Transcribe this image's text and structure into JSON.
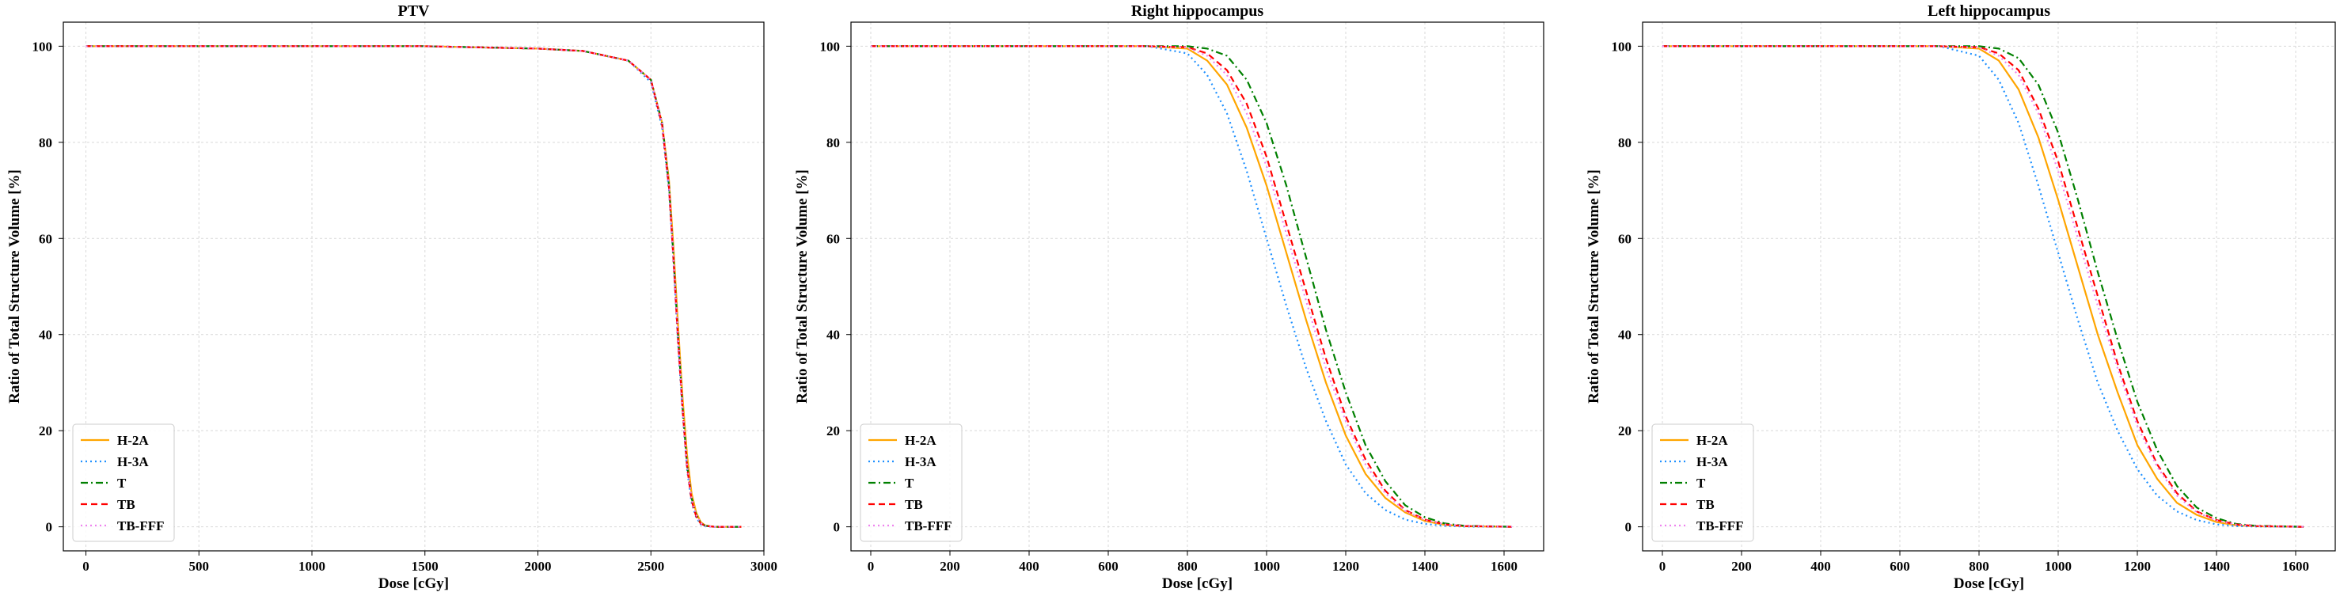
{
  "colors": {
    "H-2A": "#ffa500",
    "H-3A": "#1e90ff",
    "T": "#008000",
    "TB": "#ff0000",
    "TB-FFF": "#ee82ee"
  },
  "line_styles": {
    "H-2A": "solid",
    "H-3A": "dotted",
    "T": "dash-dot",
    "TB": "dashed",
    "TB-FFF": "dotted"
  },
  "chart_data": [
    {
      "type": "line",
      "title": "PTV",
      "xlabel": "Dose [cGy]",
      "ylabel": "Ratio of Total Structure Volume [%]",
      "xlim": [
        -100,
        3000
      ],
      "ylim": [
        -5,
        105
      ],
      "xticks": [
        0,
        500,
        1000,
        1500,
        2000,
        2500,
        3000
      ],
      "yticks": [
        0,
        20,
        40,
        60,
        80,
        100
      ],
      "grid": true,
      "legend": "lower-left",
      "series": [
        {
          "name": "H-2A",
          "x": [
            0,
            1000,
            1500,
            2000,
            2200,
            2400,
            2500,
            2550,
            2580,
            2600,
            2620,
            2640,
            2660,
            2680,
            2700,
            2720,
            2740,
            2780,
            2900
          ],
          "y": [
            100,
            100,
            100,
            99.5,
            99,
            97,
            93,
            84,
            72,
            58,
            42,
            27,
            15,
            7,
            3,
            1,
            0.3,
            0,
            0
          ]
        },
        {
          "name": "H-3A",
          "x": [
            0,
            1000,
            1500,
            2000,
            2200,
            2400,
            2500,
            2550,
            2580,
            2600,
            2620,
            2640,
            2660,
            2680,
            2700,
            2720,
            2740,
            2780,
            2900
          ],
          "y": [
            100,
            100,
            100,
            99.5,
            99,
            97,
            92.5,
            83,
            70,
            55,
            38,
            24,
            12,
            5,
            2,
            0.5,
            0.1,
            0,
            0
          ]
        },
        {
          "name": "T",
          "x": [
            0,
            1000,
            1500,
            2000,
            2200,
            2400,
            2500,
            2550,
            2580,
            2600,
            2620,
            2640,
            2660,
            2680,
            2700,
            2720,
            2740,
            2780,
            2900
          ],
          "y": [
            100,
            100,
            100,
            99.5,
            99,
            97,
            93,
            84,
            71,
            56,
            40,
            25,
            13,
            6,
            2.5,
            0.8,
            0.2,
            0,
            0
          ]
        },
        {
          "name": "TB",
          "x": [
            0,
            1000,
            1500,
            2000,
            2200,
            2400,
            2500,
            2550,
            2580,
            2600,
            2620,
            2640,
            2660,
            2680,
            2700,
            2720,
            2740,
            2780,
            2900
          ],
          "y": [
            100,
            100,
            100,
            99.5,
            99,
            97,
            93,
            83.5,
            70.5,
            55.5,
            39,
            24.5,
            12.5,
            5.5,
            2.2,
            0.7,
            0.2,
            0,
            0
          ]
        },
        {
          "name": "TB-FFF",
          "x": [
            0,
            1000,
            1500,
            2000,
            2200,
            2400,
            2500,
            2550,
            2580,
            2600,
            2620,
            2640,
            2660,
            2680,
            2700,
            2720,
            2740,
            2780,
            2900
          ],
          "y": [
            100,
            100,
            100,
            99.5,
            99,
            97,
            93,
            84,
            71,
            56,
            40,
            25,
            13,
            6,
            2.5,
            0.8,
            0.2,
            0,
            0
          ]
        }
      ]
    },
    {
      "type": "line",
      "title": "Right hippocampus",
      "xlabel": "Dose [cGy]",
      "ylabel": "Ratio of Total Structure Volume [%]",
      "xlim": [
        -50,
        1700
      ],
      "ylim": [
        -5,
        105
      ],
      "xticks": [
        0,
        200,
        400,
        600,
        800,
        1000,
        1200,
        1400,
        1600
      ],
      "yticks": [
        0,
        20,
        40,
        60,
        80,
        100
      ],
      "grid": true,
      "legend": "lower-left",
      "series": [
        {
          "name": "H-2A",
          "x": [
            0,
            700,
            800,
            850,
            900,
            950,
            1000,
            1050,
            1100,
            1150,
            1200,
            1250,
            1300,
            1350,
            1400,
            1450,
            1500,
            1620
          ],
          "y": [
            100,
            100,
            99.5,
            97,
            92,
            83,
            71,
            57,
            43,
            30,
            19,
            11,
            6,
            3,
            1.2,
            0.4,
            0.1,
            0
          ]
        },
        {
          "name": "H-3A",
          "x": [
            0,
            700,
            800,
            850,
            900,
            950,
            1000,
            1050,
            1100,
            1150,
            1200,
            1250,
            1300,
            1350,
            1400,
            1450,
            1500,
            1620
          ],
          "y": [
            100,
            100,
            98.5,
            94,
            86,
            74,
            60,
            46,
            33,
            22,
            13,
            7,
            3.5,
            1.5,
            0.6,
            0.2,
            0.05,
            0
          ]
        },
        {
          "name": "T",
          "x": [
            0,
            700,
            800,
            850,
            900,
            950,
            1000,
            1050,
            1100,
            1150,
            1200,
            1250,
            1300,
            1350,
            1400,
            1450,
            1500,
            1620
          ],
          "y": [
            100,
            100,
            100,
            99.5,
            98,
            93,
            84,
            71,
            56,
            41,
            28,
            17,
            9.5,
            4.5,
            2,
            0.7,
            0.2,
            0
          ]
        },
        {
          "name": "TB",
          "x": [
            0,
            700,
            800,
            850,
            900,
            950,
            1000,
            1050,
            1100,
            1150,
            1200,
            1250,
            1300,
            1350,
            1400,
            1450,
            1500,
            1620
          ],
          "y": [
            100,
            100,
            99.8,
            98.5,
            95,
            88,
            77,
            63,
            49,
            35,
            23,
            14,
            7.5,
            3.5,
            1.5,
            0.5,
            0.15,
            0
          ]
        },
        {
          "name": "TB-FFF",
          "x": [
            0,
            700,
            800,
            850,
            900,
            950,
            1000,
            1050,
            1100,
            1150,
            1200,
            1250,
            1300,
            1350,
            1400,
            1450,
            1500,
            1620
          ],
          "y": [
            100,
            100,
            99.7,
            98,
            94,
            86,
            75,
            61,
            47,
            33,
            22,
            13,
            7,
            3.3,
            1.4,
            0.5,
            0.15,
            0
          ]
        }
      ]
    },
    {
      "type": "line",
      "title": "Left hippocampus",
      "xlabel": "Dose [cGy]",
      "ylabel": "Ratio of Total Structure Volume [%]",
      "xlim": [
        -50,
        1700
      ],
      "ylim": [
        -5,
        105
      ],
      "xticks": [
        0,
        200,
        400,
        600,
        800,
        1000,
        1200,
        1400,
        1600
      ],
      "yticks": [
        0,
        20,
        40,
        60,
        80,
        100
      ],
      "grid": true,
      "legend": "lower-left",
      "series": [
        {
          "name": "H-2A",
          "x": [
            0,
            700,
            800,
            850,
            900,
            950,
            1000,
            1050,
            1100,
            1150,
            1200,
            1250,
            1300,
            1350,
            1400,
            1450,
            1500,
            1620
          ],
          "y": [
            100,
            100,
            99.5,
            97,
            91,
            81,
            68,
            54,
            40,
            28,
            17,
            10,
            5,
            2.5,
            1,
            0.3,
            0.1,
            0
          ]
        },
        {
          "name": "H-3A",
          "x": [
            0,
            700,
            800,
            850,
            900,
            950,
            1000,
            1050,
            1100,
            1150,
            1200,
            1250,
            1300,
            1350,
            1400,
            1450,
            1500,
            1620
          ],
          "y": [
            100,
            100,
            98,
            93,
            84,
            71,
            57,
            43,
            30,
            20,
            12,
            6.5,
            3.2,
            1.4,
            0.5,
            0.15,
            0.05,
            0
          ]
        },
        {
          "name": "T",
          "x": [
            0,
            700,
            800,
            850,
            900,
            950,
            1000,
            1050,
            1100,
            1150,
            1200,
            1250,
            1300,
            1350,
            1400,
            1450,
            1500,
            1620
          ],
          "y": [
            100,
            100,
            100,
            99.5,
            97.5,
            92,
            82,
            68,
            53,
            39,
            26,
            16,
            8.5,
            4,
            1.8,
            0.6,
            0.2,
            0
          ]
        },
        {
          "name": "TB",
          "x": [
            0,
            700,
            800,
            850,
            900,
            950,
            1000,
            1050,
            1100,
            1150,
            1200,
            1250,
            1300,
            1350,
            1400,
            1450,
            1500,
            1620
          ],
          "y": [
            100,
            100,
            99.8,
            98.5,
            95,
            87,
            76,
            62,
            48,
            34,
            22,
            13,
            7,
            3.2,
            1.4,
            0.5,
            0.15,
            0
          ]
        },
        {
          "name": "TB-FFF",
          "x": [
            0,
            700,
            800,
            850,
            900,
            950,
            1000,
            1050,
            1100,
            1150,
            1200,
            1250,
            1300,
            1350,
            1400,
            1450,
            1500,
            1620
          ],
          "y": [
            100,
            100,
            99.7,
            98,
            94,
            86,
            74,
            60,
            46,
            33,
            21,
            12.5,
            6.5,
            3,
            1.3,
            0.45,
            0.12,
            0
          ]
        }
      ]
    }
  ]
}
